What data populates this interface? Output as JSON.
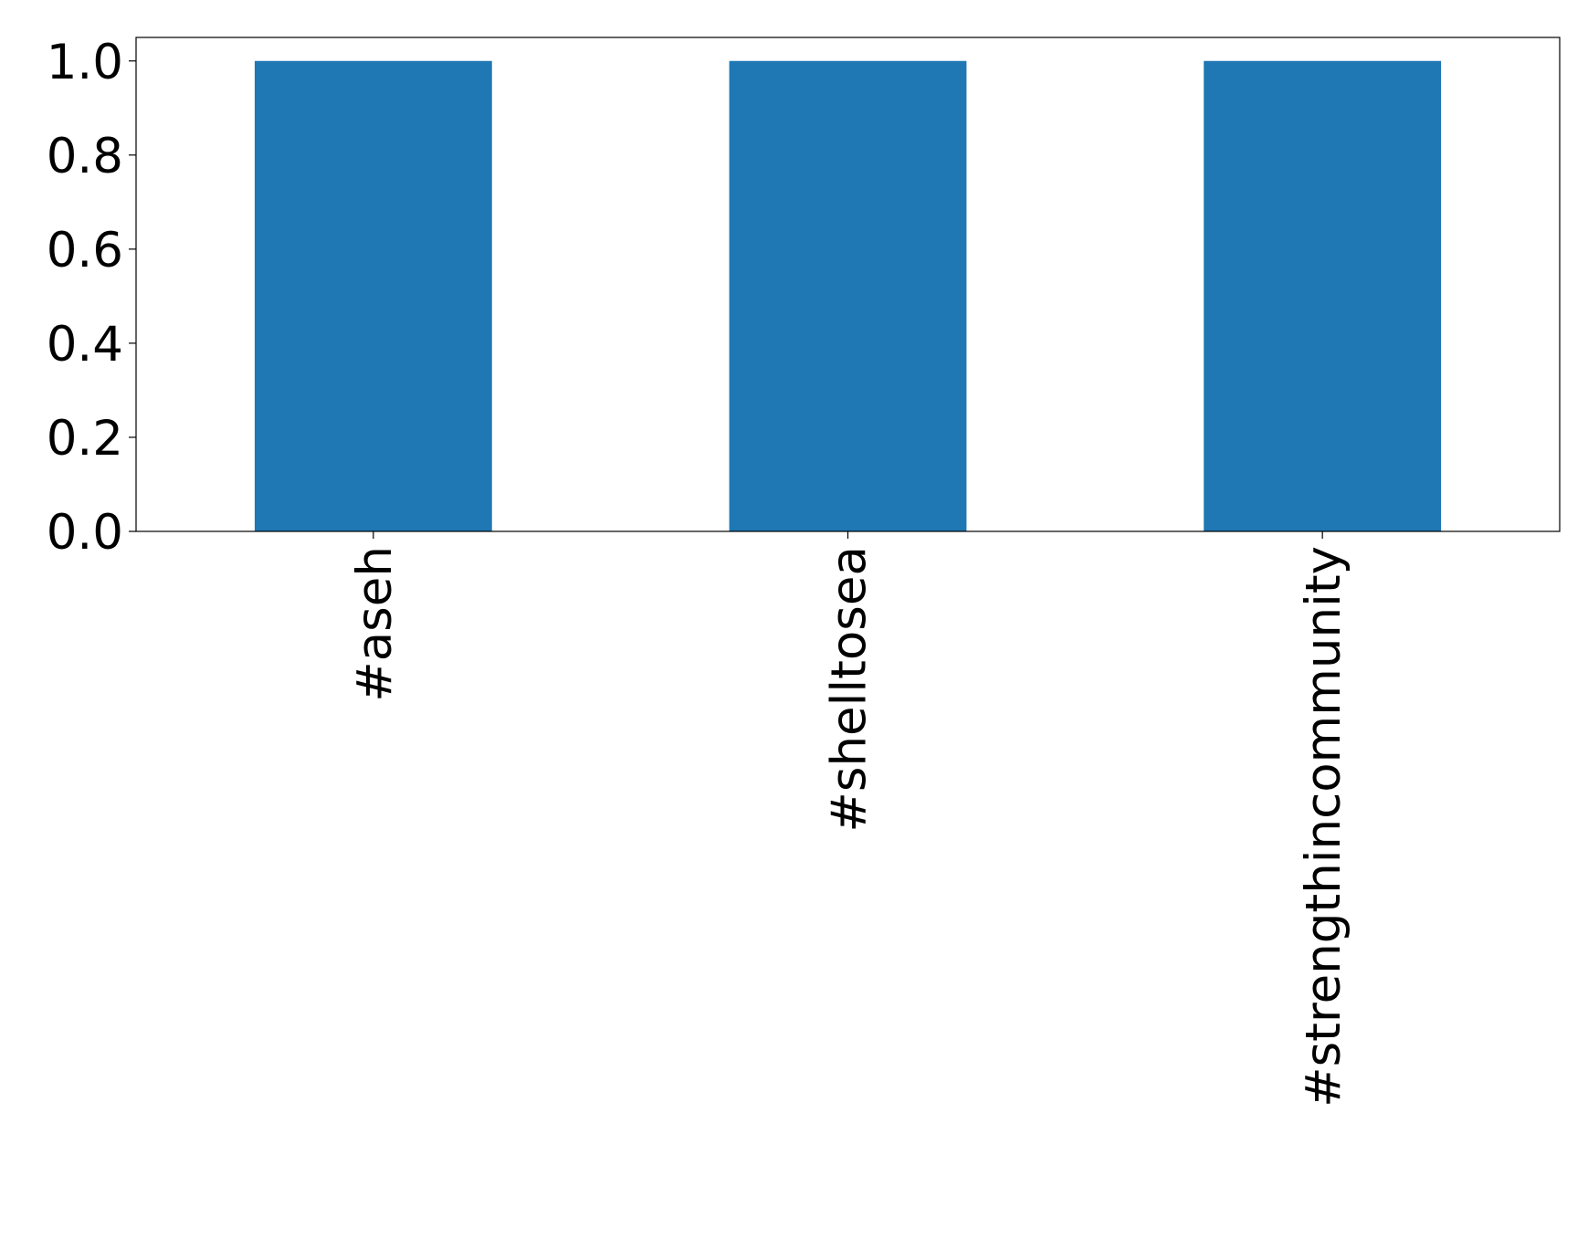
{
  "chart_data": {
    "type": "bar",
    "categories": [
      "#aseh",
      "#shelltosea",
      "#strengthincommunity"
    ],
    "values": [
      1,
      1,
      1
    ],
    "title": "",
    "xlabel": "",
    "ylabel": "",
    "ylim": [
      0,
      1.05
    ],
    "yticks": [
      "0.0",
      "0.2",
      "0.4",
      "0.6",
      "0.8",
      "1.0"
    ],
    "grid": false,
    "bar_color": "#1f77b4"
  }
}
